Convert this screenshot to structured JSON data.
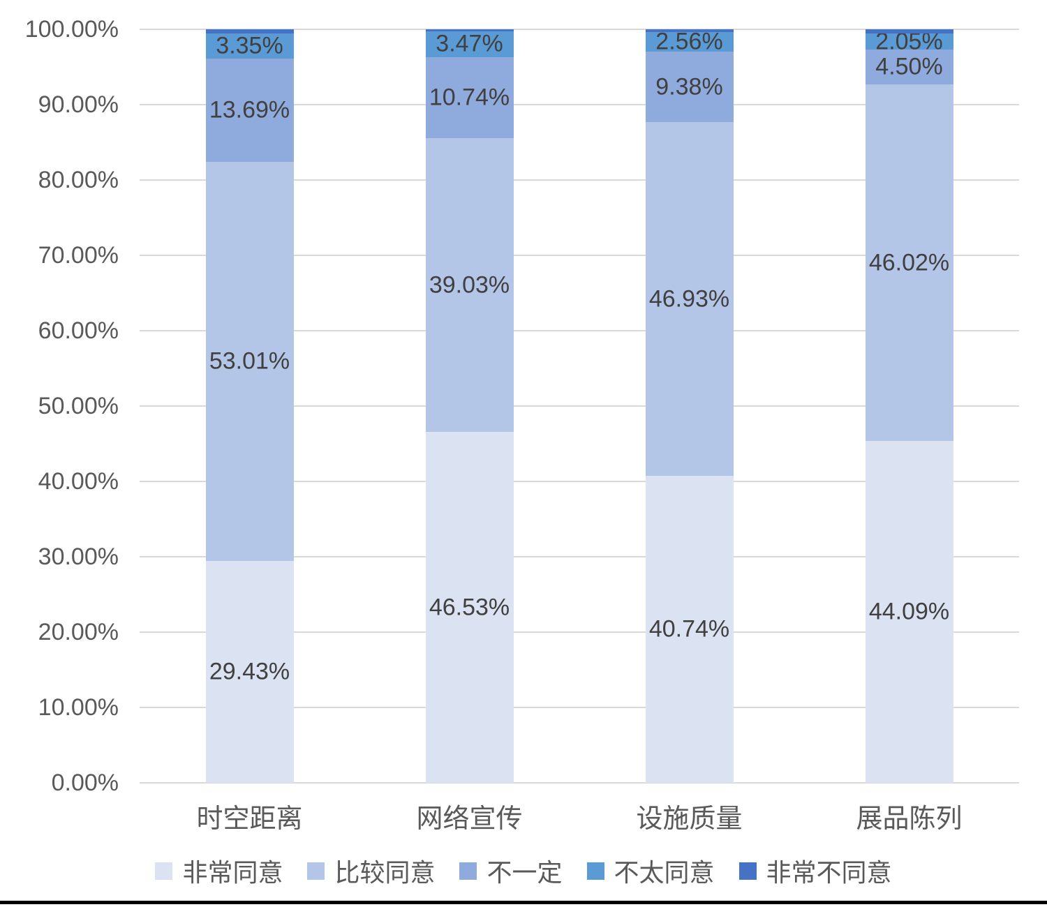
{
  "chart_data": {
    "type": "bar",
    "variant": "100-percent-stacked-column",
    "title": "",
    "xlabel": "",
    "ylabel": "",
    "grid": true,
    "legend_position": "bottom",
    "categories": [
      "时空距离",
      "网络宣传",
      "设施质量",
      "展品陈列"
    ],
    "series": [
      {
        "name": "非常同意",
        "color": "#dbe2f2",
        "values": [
          29.43,
          46.53,
          40.74,
          44.09
        ],
        "labels_visible": true
      },
      {
        "name": "比较同意",
        "color": "#b4c6e7",
        "values": [
          53.01,
          39.03,
          46.93,
          46.02
        ],
        "labels_visible": true
      },
      {
        "name": "不一定",
        "color": "#8faadc",
        "values": [
          13.69,
          10.74,
          9.38,
          4.5
        ],
        "labels_visible": true
      },
      {
        "name": "不太同意",
        "color": "#5b9bd5",
        "values": [
          3.35,
          3.47,
          2.56,
          2.05
        ],
        "labels_visible": true
      },
      {
        "name": "非常不同意",
        "color": "#4472c4",
        "values": [
          0.52,
          0.23,
          0.39,
          0.55
        ],
        "labels_visible": false
      }
    ],
    "label_format": "0.00%",
    "y_axis": {
      "min": 0,
      "max": 100,
      "tick_labels_top_to_bottom": [
        "100.00%",
        "90.00%",
        "80.00%",
        "70.00%",
        "60.00%",
        "50.00%",
        "40.00%",
        "30.00%",
        "20.00%",
        "10.00%",
        "0.00%"
      ]
    }
  },
  "colors": {
    "gridline": "#d9d9d9",
    "axis_text": "#595959",
    "data_label_text": "#404040",
    "background": "#ffffff",
    "bottom_edge": "#000000"
  },
  "layout_note_values_are_normalized_per_bar_to_100_percent": true
}
